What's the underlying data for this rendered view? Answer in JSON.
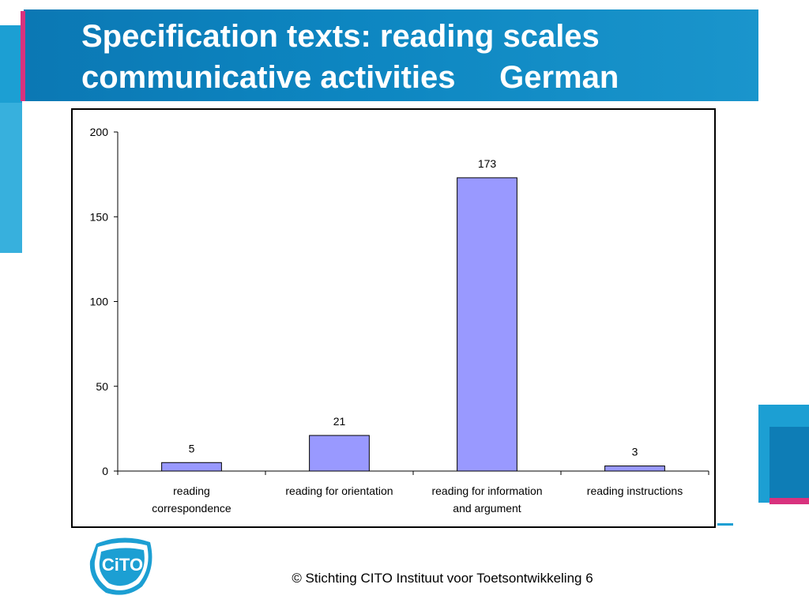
{
  "slide": {
    "title": "Specification texts: reading scales\ncommunicative activities     German",
    "footer": "© Stichting CITO Instituut voor Toetsontwikkeling 6",
    "logo_text": "CiTO",
    "colors": {
      "banner": "#0b78b4",
      "accent_pink": "#d8327e",
      "light_blue": "#1c9fd3"
    }
  },
  "chart_data": {
    "type": "bar",
    "categories": [
      "reading\ncorrespondence",
      "reading for orientation",
      "reading for information\nand argument",
      "reading instructions"
    ],
    "values": [
      5,
      21,
      173,
      3
    ],
    "data_labels": [
      "5",
      "21",
      "173",
      "3"
    ],
    "ylim": [
      0,
      200
    ],
    "yticks": [
      0,
      50,
      100,
      150,
      200
    ],
    "bar_color": "#9999ff",
    "bar_edge_color": "#000000",
    "grid": false,
    "legend": false,
    "title": "",
    "xlabel": "",
    "ylabel": ""
  }
}
